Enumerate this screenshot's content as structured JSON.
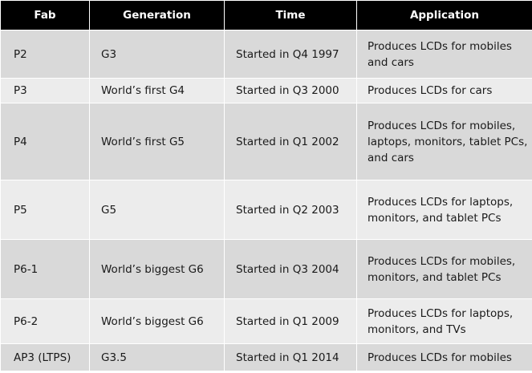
{
  "table": {
    "headers": [
      "Fab",
      "Generation",
      "Time",
      "Application"
    ],
    "rows": [
      {
        "fab": "P2",
        "generation": "G3",
        "time": "Started in Q4 1997",
        "application": "Produces LCDs for mobiles and cars"
      },
      {
        "fab": "P3",
        "generation": "World’s first G4",
        "time": "Started in Q3 2000",
        "application": "Produces LCDs for cars"
      },
      {
        "fab": "P4",
        "generation": "World’s first G5",
        "time": "Started in Q1 2002",
        "application": "Produces LCDs for mobiles, laptops, monitors, tablet PCs, and cars"
      },
      {
        "fab": "P5",
        "generation": "G5",
        "time": "Started in Q2 2003",
        "application": "Produces LCDs for laptops, monitors, and tablet PCs"
      },
      {
        "fab": "P6-1",
        "generation": "World’s biggest G6",
        "time": "Started in Q3 2004",
        "application": "Produces LCDs for mobiles, monitors, and tablet PCs"
      },
      {
        "fab": "P6-2",
        "generation": "World’s biggest G6",
        "time": "Started in Q1 2009",
        "application": "Produces LCDs for laptops, monitors, and TVs"
      },
      {
        "fab": "AP3 (LTPS)",
        "generation": "G3.5",
        "time": "Started in Q1 2014",
        "application": "Produces LCDs for mobiles"
      }
    ]
  },
  "colors": {
    "header_bg": "#000000",
    "header_text": "#ffffff",
    "row_dark": "#d9d9d9",
    "row_light": "#ececec"
  }
}
